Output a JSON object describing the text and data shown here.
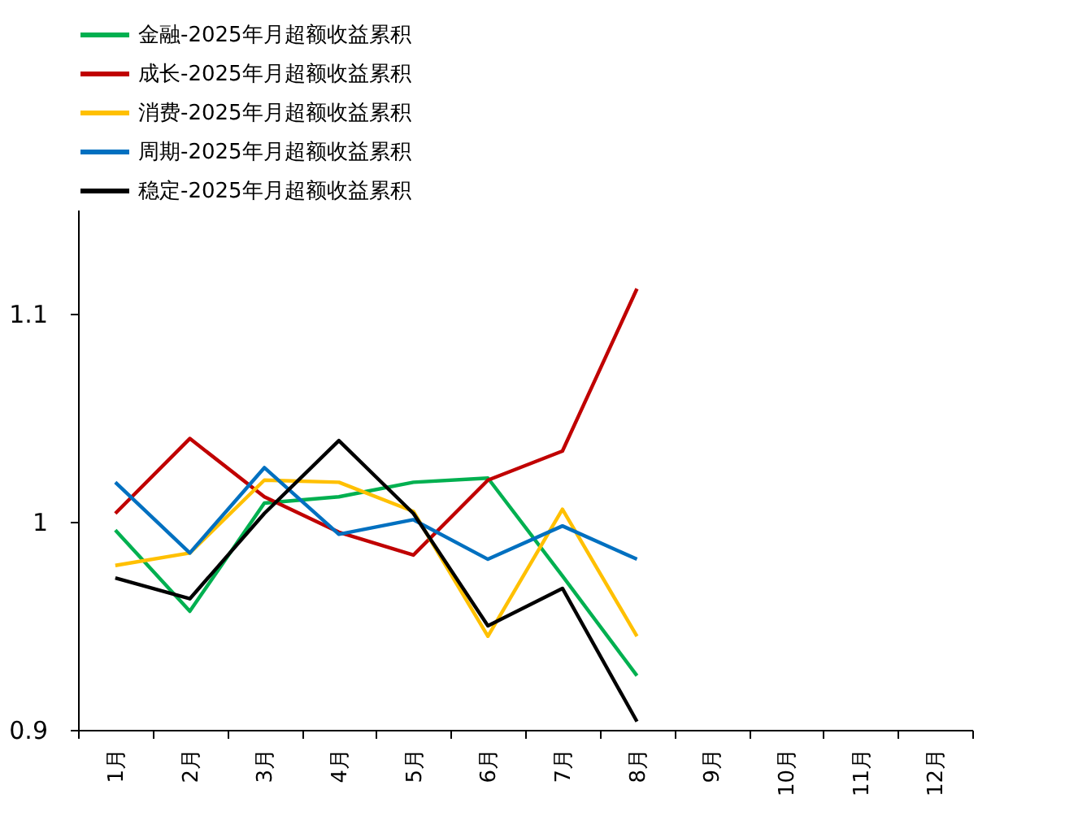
{
  "chart_data": {
    "type": "line",
    "categories": [
      "1月",
      "2月",
      "3月",
      "4月",
      "5月",
      "6月",
      "7月",
      "8月",
      "9月",
      "10月",
      "11月",
      "12月"
    ],
    "ylim": [
      0.9,
      1.15
    ],
    "yticks": [
      0.9,
      {
        "value": 1,
        "label": "1"
      },
      1.1
    ],
    "grid": false,
    "legend": "top",
    "marker": "none",
    "line_style": "solid",
    "series": [
      {
        "name": "金融-2025年月超额收益累积",
        "color": "#00b050",
        "values": [
          0.996,
          0.957,
          1.009,
          1.012,
          1.019,
          1.021,
          0.974,
          0.926,
          null,
          null,
          null,
          null
        ]
      },
      {
        "name": "成长-2025年月超额收益累积",
        "color": "#c00000",
        "values": [
          1.004,
          1.04,
          1.012,
          0.995,
          0.984,
          1.02,
          1.034,
          1.112,
          null,
          null,
          null,
          null
        ]
      },
      {
        "name": "消费-2025年月超额收益累积",
        "color": "#ffc000",
        "values": [
          0.979,
          0.985,
          1.02,
          1.019,
          1.005,
          0.945,
          1.006,
          0.945,
          null,
          null,
          null,
          null
        ]
      },
      {
        "name": "周期-2025年月超额收益累积",
        "color": "#0070c0",
        "values": [
          1.019,
          0.985,
          1.026,
          0.994,
          1.001,
          0.982,
          0.998,
          0.982,
          null,
          null,
          null,
          null
        ]
      },
      {
        "name": "稳定-2025年月超额收益累积",
        "color": "#000000",
        "values": [
          0.973,
          0.963,
          1.004,
          1.039,
          1.004,
          0.95,
          0.968,
          0.904,
          null,
          null,
          null,
          null
        ]
      }
    ]
  }
}
